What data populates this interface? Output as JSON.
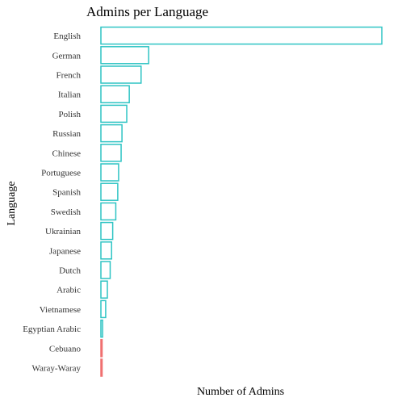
{
  "chart_data": {
    "type": "bar",
    "orientation": "horizontal",
    "title": "Admins per Language",
    "xlabel": "Number of Admins",
    "ylabel": "Language",
    "grid": false,
    "legend": "none",
    "x_tick_labels_shown": false,
    "categories": [
      "English",
      "German",
      "French",
      "Italian",
      "Polish",
      "Russian",
      "Chinese",
      "Portuguese",
      "Spanish",
      "Swedish",
      "Ukrainian",
      "Japanese",
      "Dutch",
      "Arabic",
      "Vietnamese",
      "Egyptian Arabic",
      "Cebuano",
      "Waray-Waray"
    ],
    "values": [
      1000,
      170,
      143,
      101,
      92,
      75,
      72,
      63,
      60,
      53,
      42,
      38,
      33,
      23,
      17,
      6,
      4,
      3
    ],
    "colors": [
      "#2ec4c4",
      "#2ec4c4",
      "#2ec4c4",
      "#2ec4c4",
      "#2ec4c4",
      "#2ec4c4",
      "#2ec4c4",
      "#2ec4c4",
      "#2ec4c4",
      "#2ec4c4",
      "#2ec4c4",
      "#2ec4c4",
      "#2ec4c4",
      "#2ec4c4",
      "#2ec4c4",
      "#2ec4c4",
      "#f07070",
      "#f07070"
    ],
    "xlim": [
      0,
      1000
    ]
  }
}
